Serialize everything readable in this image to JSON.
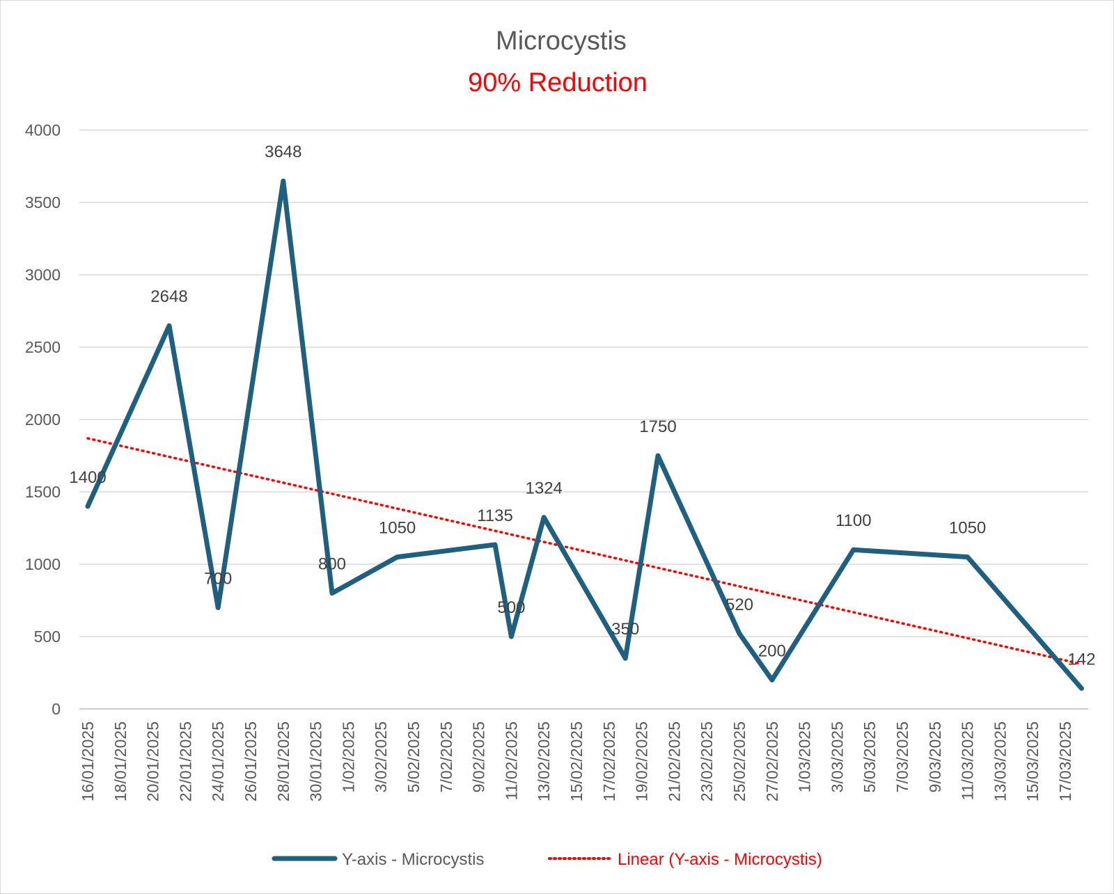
{
  "chart_data": {
    "type": "line",
    "title": "Microcystis",
    "subtitle": "90% Reduction",
    "ylim": [
      0,
      4000
    ],
    "yticks": [
      0,
      500,
      1000,
      1500,
      2000,
      2500,
      3000,
      3500,
      4000
    ],
    "xlim": [
      "16/01/2025",
      "18/03/2025"
    ],
    "xtick_labels": [
      "16/01/2025",
      "18/01/2025",
      "20/01/2025",
      "22/01/2025",
      "24/01/2025",
      "26/01/2025",
      "28/01/2025",
      "30/01/2025",
      "1/02/2025",
      "3/02/2025",
      "5/02/2025",
      "7/02/2025",
      "9/02/2025",
      "11/02/2025",
      "13/02/2025",
      "15/02/2025",
      "17/02/2025",
      "19/02/2025",
      "21/02/2025",
      "23/02/2025",
      "25/02/2025",
      "27/02/2025",
      "1/03/2025",
      "3/03/2025",
      "5/03/2025",
      "7/03/2025",
      "9/03/2025",
      "11/03/2025",
      "13/03/2025",
      "15/03/2025",
      "17/03/2025"
    ],
    "grid": true,
    "legend_position": "bottom",
    "series": [
      {
        "name": "Y-axis - Microcystis",
        "color": "#1f5f7f",
        "points": [
          {
            "x": "16/01/2025",
            "y": 1400,
            "label": "1400"
          },
          {
            "x": "21/01/2025",
            "y": 2648,
            "label": "2648"
          },
          {
            "x": "24/01/2025",
            "y": 700,
            "label": "700"
          },
          {
            "x": "28/01/2025",
            "y": 3648,
            "label": "3648"
          },
          {
            "x": "31/01/2025",
            "y": 800,
            "label": "800"
          },
          {
            "x": "4/02/2025",
            "y": 1050,
            "label": "1050"
          },
          {
            "x": "10/02/2025",
            "y": 1135,
            "label": "1135"
          },
          {
            "x": "11/02/2025",
            "y": 500,
            "label": "500"
          },
          {
            "x": "13/02/2025",
            "y": 1324,
            "label": "1324"
          },
          {
            "x": "18/02/2025",
            "y": 350,
            "label": "350"
          },
          {
            "x": "20/02/2025",
            "y": 1750,
            "label": "1750"
          },
          {
            "x": "25/02/2025",
            "y": 520,
            "label": "520"
          },
          {
            "x": "27/02/2025",
            "y": 200,
            "label": "200"
          },
          {
            "x": "4/03/2025",
            "y": 1100,
            "label": "1100"
          },
          {
            "x": "11/03/2025",
            "y": 1050,
            "label": "1050"
          },
          {
            "x": "18/03/2025",
            "y": 142,
            "label": "142"
          }
        ]
      }
    ],
    "trendline": {
      "name": "Linear (Y-axis - Microcystis)",
      "color": "#ff0000",
      "start": {
        "x": "16/01/2025",
        "y": 1870
      },
      "end": {
        "x": "18/03/2025",
        "y": 310
      }
    }
  }
}
